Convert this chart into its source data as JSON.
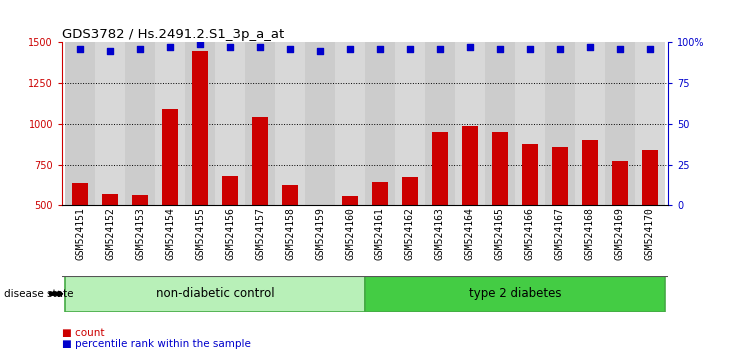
{
  "title": "GDS3782 / Hs.2491.2.S1_3p_a_at",
  "samples": [
    "GSM524151",
    "GSM524152",
    "GSM524153",
    "GSM524154",
    "GSM524155",
    "GSM524156",
    "GSM524157",
    "GSM524158",
    "GSM524159",
    "GSM524160",
    "GSM524161",
    "GSM524162",
    "GSM524163",
    "GSM524164",
    "GSM524165",
    "GSM524166",
    "GSM524167",
    "GSM524168",
    "GSM524169",
    "GSM524170"
  ],
  "counts": [
    635,
    570,
    565,
    1090,
    1450,
    680,
    1040,
    625,
    505,
    560,
    645,
    675,
    950,
    990,
    950,
    875,
    860,
    900,
    775,
    840
  ],
  "percentile_ranks": [
    96,
    95,
    96,
    97,
    99,
    97,
    97,
    96,
    95,
    96,
    96,
    96,
    96,
    97,
    96,
    96,
    96,
    97,
    96,
    96
  ],
  "bar_color": "#cc0000",
  "dot_color": "#0000cc",
  "ylim_left": [
    500,
    1500
  ],
  "ylim_right": [
    0,
    100
  ],
  "yticks_left": [
    500,
    750,
    1000,
    1250,
    1500
  ],
  "yticks_right": [
    0,
    25,
    50,
    75,
    100
  ],
  "ytick_right_labels": [
    "0",
    "25",
    "50",
    "75",
    "100%"
  ],
  "groups": [
    {
      "label": "non-diabetic control",
      "start": 0,
      "end": 9,
      "facecolor": "#b8f0b8",
      "edgecolor": "#44aa44"
    },
    {
      "label": "type 2 diabetes",
      "start": 10,
      "end": 19,
      "facecolor": "#44cc44",
      "edgecolor": "#44aa44"
    }
  ],
  "plot_bg": "#ffffff",
  "col_bg_even": "#cccccc",
  "col_bg_odd": "#d8d8d8",
  "title_fontsize": 9.5,
  "tick_fontsize": 7,
  "label_fontsize": 8,
  "grid_color": "#555555",
  "group_label_fontsize": 8.5
}
